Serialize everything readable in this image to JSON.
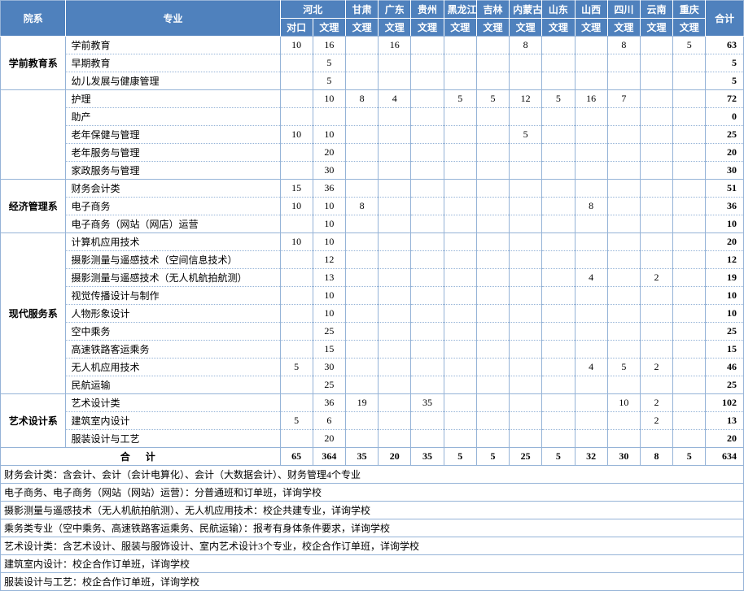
{
  "headers": {
    "dept": "院系",
    "major": "专业",
    "total": "合计",
    "hebei": "河北",
    "hebei_sub1": "对口",
    "hebei_sub2": "文理",
    "generic_sub": "文理",
    "provinces": [
      "甘肃",
      "广东",
      "贵州",
      "黑龙江",
      "吉林",
      "内蒙古",
      "山东",
      "山西",
      "四川",
      "云南",
      "重庆"
    ]
  },
  "departments": [
    {
      "name": "学前教育系",
      "rows": [
        {
          "major": "学前教育",
          "v": [
            "10",
            "16",
            "",
            "16",
            "",
            "",
            "",
            "8",
            "",
            "",
            "8",
            "",
            "5"
          ],
          "total": "63"
        },
        {
          "major": "早期教育",
          "v": [
            "",
            "5",
            "",
            "",
            "",
            "",
            "",
            "",
            "",
            "",
            "",
            "",
            ""
          ],
          "total": "5"
        },
        {
          "major": "幼儿发展与健康管理",
          "v": [
            "",
            "5",
            "",
            "",
            "",
            "",
            "",
            "",
            "",
            "",
            "",
            "",
            ""
          ],
          "total": "5"
        }
      ]
    },
    {
      "name": "",
      "rows": [
        {
          "major": "护理",
          "v": [
            "",
            "10",
            "8",
            "4",
            "",
            "5",
            "5",
            "12",
            "5",
            "16",
            "7",
            "",
            ""
          ],
          "total": "72"
        },
        {
          "major": "助产",
          "v": [
            "",
            "",
            "",
            "",
            "",
            "",
            "",
            "",
            "",
            "",
            "",
            "",
            ""
          ],
          "total": "0"
        },
        {
          "major": "老年保健与管理",
          "v": [
            "10",
            "10",
            "",
            "",
            "",
            "",
            "",
            "5",
            "",
            "",
            "",
            "",
            ""
          ],
          "total": "25"
        },
        {
          "major": "老年服务与管理",
          "v": [
            "",
            "20",
            "",
            "",
            "",
            "",
            "",
            "",
            "",
            "",
            "",
            "",
            ""
          ],
          "total": "20"
        },
        {
          "major": "家政服务与管理",
          "v": [
            "",
            "30",
            "",
            "",
            "",
            "",
            "",
            "",
            "",
            "",
            "",
            "",
            ""
          ],
          "total": "30"
        }
      ]
    },
    {
      "name": "经济管理系",
      "rows": [
        {
          "major": "财务会计类",
          "v": [
            "15",
            "36",
            "",
            "",
            "",
            "",
            "",
            "",
            "",
            "",
            "",
            "",
            ""
          ],
          "total": "51"
        },
        {
          "major": "电子商务",
          "v": [
            "10",
            "10",
            "8",
            "",
            "",
            "",
            "",
            "",
            "",
            "8",
            "",
            "",
            ""
          ],
          "total": "36"
        },
        {
          "major": "电子商务（网站（网店）运营",
          "v": [
            "",
            "10",
            "",
            "",
            "",
            "",
            "",
            "",
            "",
            "",
            "",
            "",
            ""
          ],
          "total": "10"
        }
      ]
    },
    {
      "name": "现代服务系",
      "rows": [
        {
          "major": "计算机应用技术",
          "v": [
            "10",
            "10",
            "",
            "",
            "",
            "",
            "",
            "",
            "",
            "",
            "",
            "",
            ""
          ],
          "total": "20"
        },
        {
          "major": "摄影测量与遥感技术（空间信息技术）",
          "v": [
            "",
            "12",
            "",
            "",
            "",
            "",
            "",
            "",
            "",
            "",
            "",
            "",
            ""
          ],
          "total": "12"
        },
        {
          "major": "摄影测量与遥感技术（无人机航拍航测）",
          "v": [
            "",
            "13",
            "",
            "",
            "",
            "",
            "",
            "",
            "",
            "4",
            "",
            "2",
            ""
          ],
          "total": "19"
        },
        {
          "major": "视觉传播设计与制作",
          "v": [
            "",
            "10",
            "",
            "",
            "",
            "",
            "",
            "",
            "",
            "",
            "",
            "",
            ""
          ],
          "total": "10"
        },
        {
          "major": "人物形象设计",
          "v": [
            "",
            "10",
            "",
            "",
            "",
            "",
            "",
            "",
            "",
            "",
            "",
            "",
            ""
          ],
          "total": "10"
        },
        {
          "major": "空中乘务",
          "v": [
            "",
            "25",
            "",
            "",
            "",
            "",
            "",
            "",
            "",
            "",
            "",
            "",
            ""
          ],
          "total": "25"
        },
        {
          "major": "高速铁路客运乘务",
          "v": [
            "",
            "15",
            "",
            "",
            "",
            "",
            "",
            "",
            "",
            "",
            "",
            "",
            ""
          ],
          "total": "15"
        },
        {
          "major": "无人机应用技术",
          "v": [
            "5",
            "30",
            "",
            "",
            "",
            "",
            "",
            "",
            "",
            "4",
            "5",
            "2",
            ""
          ],
          "total": "46"
        },
        {
          "major": "民航运输",
          "v": [
            "",
            "25",
            "",
            "",
            "",
            "",
            "",
            "",
            "",
            "",
            "",
            "",
            ""
          ],
          "total": "25"
        }
      ]
    },
    {
      "name": "艺术设计系",
      "rows": [
        {
          "major": "艺术设计类",
          "v": [
            "",
            "36",
            "19",
            "",
            "35",
            "",
            "",
            "",
            "",
            "",
            "10",
            "2",
            ""
          ],
          "total": "102"
        },
        {
          "major": "建筑室内设计",
          "v": [
            "5",
            "6",
            "",
            "",
            "",
            "",
            "",
            "",
            "",
            "",
            "",
            "2",
            ""
          ],
          "total": "13"
        },
        {
          "major": "服装设计与工艺",
          "v": [
            "",
            "20",
            "",
            "",
            "",
            "",
            "",
            "",
            "",
            "",
            "",
            "",
            ""
          ],
          "total": "20"
        }
      ]
    }
  ],
  "totals": {
    "label": "合 计",
    "v": [
      "65",
      "364",
      "35",
      "20",
      "35",
      "5",
      "5",
      "25",
      "5",
      "32",
      "30",
      "8",
      "5"
    ],
    "total": "634"
  },
  "notes": [
    "财务会计类：含会计、会计（会计电算化）、会计（大数据会计）、财务管理4个专业",
    "电子商务、电子商务（网站（网站）运营）：分普通班和订单班，详询学校",
    "摄影测量与遥感技术（无人机航拍航测）、无人机应用技术：校企共建专业，详询学校",
    "乘务类专业（空中乘务、高速铁路客运乘务、民航运输）：报考有身体条件要求，详询学校",
    "艺术设计类：含艺术设计、服装与服饰设计、室内艺术设计3个专业，校企合作订单班，详询学校",
    "建筑室内设计：校企合作订单班，详询学校",
    "服装设计与工艺：校企合作订单班，详询学校"
  ]
}
